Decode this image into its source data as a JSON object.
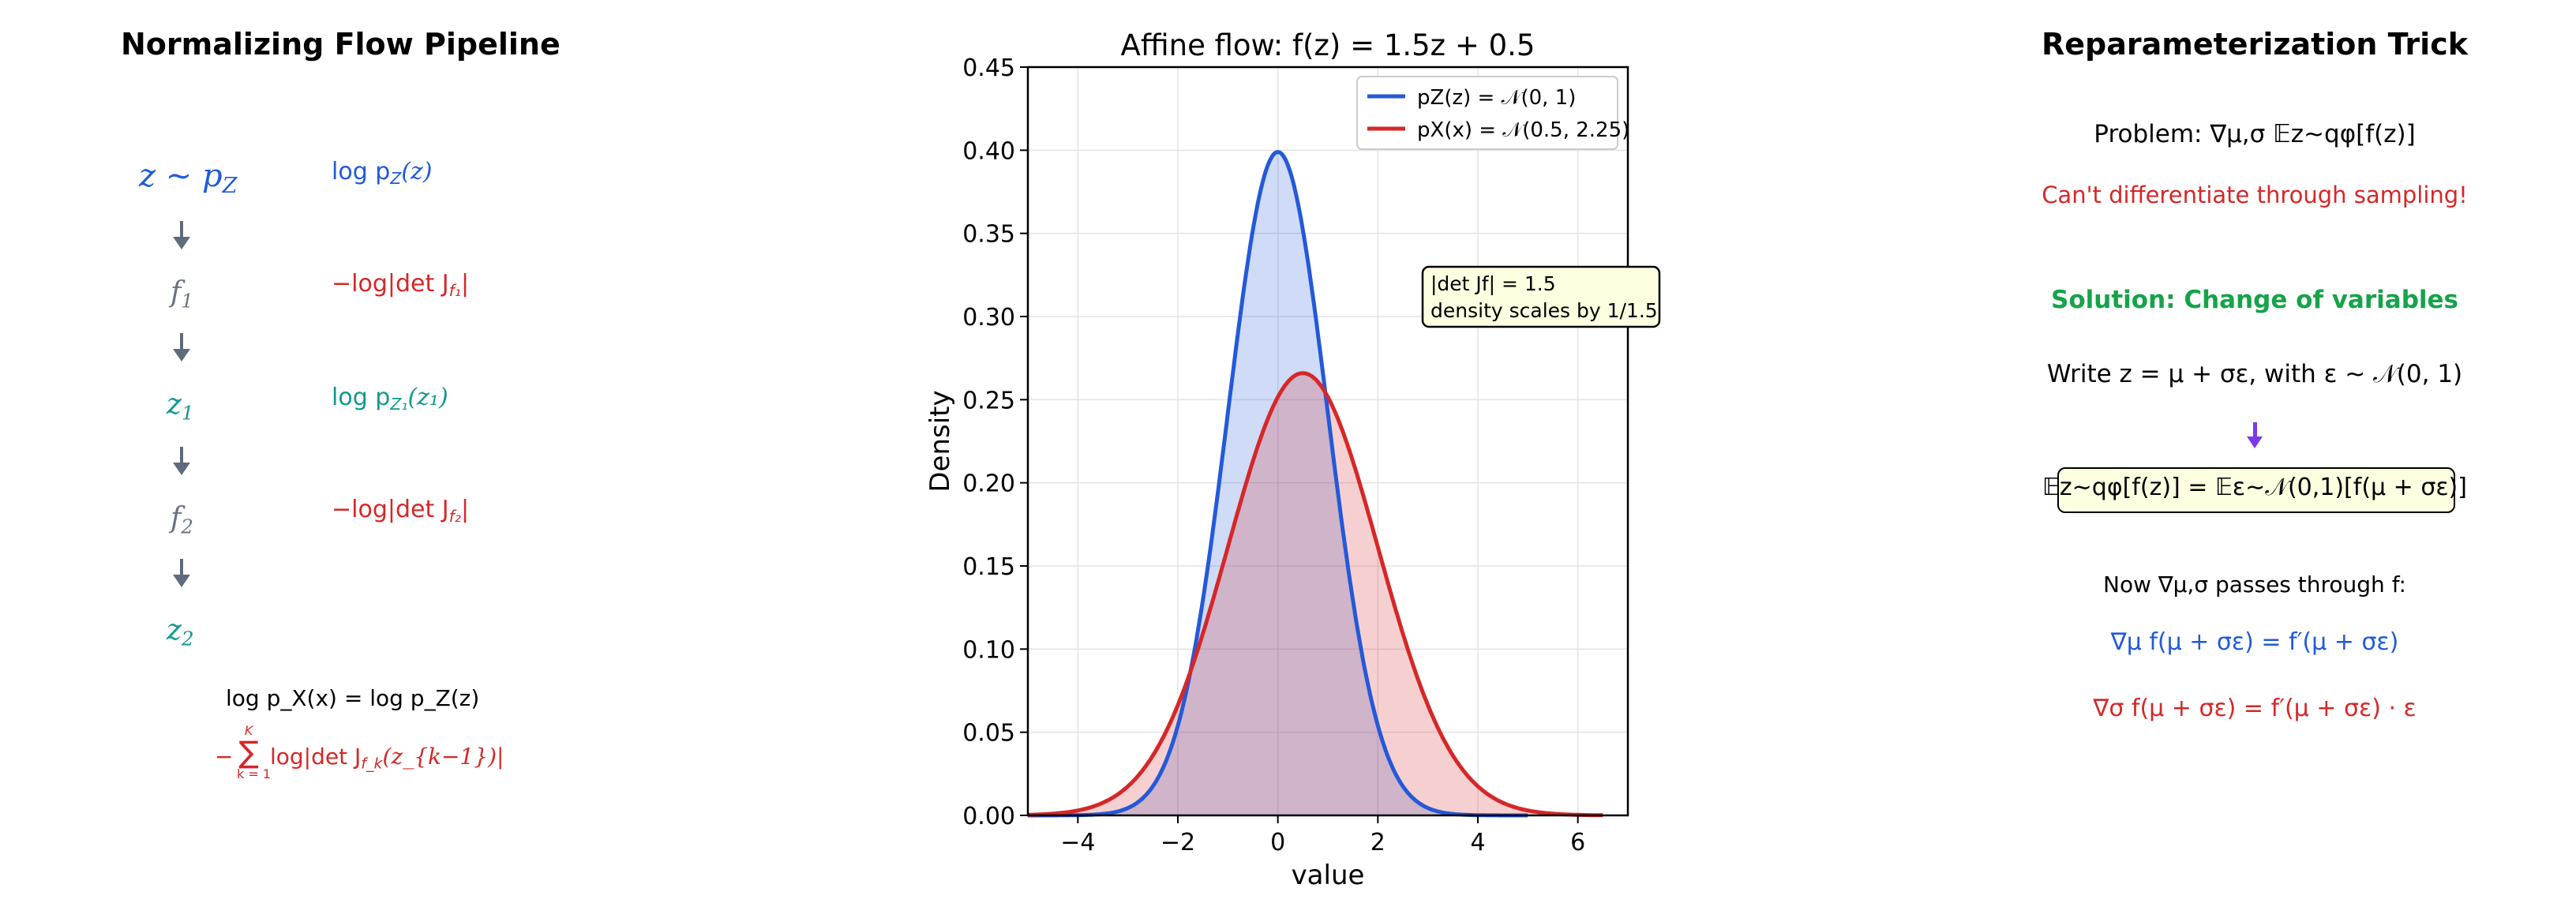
{
  "pipeline": {
    "title": "Normalizing Flow Pipeline",
    "nodes": [
      {
        "main": "z ∼ p",
        "sub": "Z"
      },
      {
        "main": "f",
        "sub": "1"
      },
      {
        "main": "z",
        "sub": "1"
      },
      {
        "main": "f",
        "sub": "2"
      },
      {
        "main": "z",
        "sub": "2"
      }
    ],
    "annotations": {
      "logpz": "log p",
      "logpz_sub": "Z",
      "logpz_arg": "(z)",
      "det1_prefix": "−log|det J",
      "det1_sub": "f₁",
      "det1_suffix": "|",
      "logpz1": "log p",
      "logpz1_sub": "Z₁",
      "logpz1_arg": "(z₁)",
      "det2_prefix": "−log|det J",
      "det2_sub": "f₂",
      "det2_suffix": "|"
    },
    "formula_line1": "log p_X(x) = log p_Z(z)",
    "formula_line2_minus": "−",
    "formula_sum": "∑",
    "formula_sum_top": "K",
    "formula_sum_bottom": "k = 1",
    "formula_line2_body": "log|det J",
    "formula_line2_sub": "f_k",
    "formula_line2_arg": "(z_{k−1})|",
    "colors": {
      "blue": "#1f5bd8",
      "red": "#d62728",
      "teal": "#11998e",
      "gray": "#6b7280"
    }
  },
  "chart_data": {
    "type": "line",
    "title": "Affine flow: f(z) = 1.5z + 0.5",
    "xlabel": "value",
    "ylabel": "Density",
    "xlim": [
      -5,
      7
    ],
    "ylim": [
      0,
      0.45
    ],
    "xticks": [
      -4,
      -2,
      0,
      2,
      4,
      6
    ],
    "xtick_labels": [
      "−4",
      "−2",
      "0",
      "2",
      "4",
      "6"
    ],
    "yticks": [
      0.0,
      0.05,
      0.1,
      0.15,
      0.2,
      0.25,
      0.3,
      0.35,
      0.4,
      0.45
    ],
    "ytick_labels": [
      "0.00",
      "0.05",
      "0.10",
      "0.15",
      "0.20",
      "0.25",
      "0.30",
      "0.35",
      "0.40",
      "0.45"
    ],
    "grid": true,
    "legend_position": "top-right",
    "series": [
      {
        "name": "p_Z(z) = N(0, 1)",
        "legend": "pZ(z) = 𝒩(0, 1)",
        "mean": 0.0,
        "std": 1.0,
        "range": [
          -5,
          5
        ],
        "color": "#2459d9",
        "fill": "#cfdcf7"
      },
      {
        "name": "p_X(x) = N(0.5, 2.25)",
        "legend": "pX(x) = 𝒩(0.5, 2.25)",
        "mean": 0.5,
        "std": 1.5,
        "range": [
          -5,
          6.5
        ],
        "color": "#d62728",
        "fill": "#f4c6c6"
      }
    ],
    "annotation": {
      "line1": "|det Jf| = 1.5",
      "line2": "density scales by 1/1.5"
    }
  },
  "reparam": {
    "title": "Reparameterization Trick",
    "problem": "Problem: ∇μ,σ 𝔼z∼qφ[f(z)]",
    "cant": "Can't differentiate through sampling!",
    "solution": "Solution: Change of variables",
    "write": "Write z = μ + σε, with ε ∼ 𝒩(0, 1)",
    "boxed": "𝔼z∼qφ[f(z)] = 𝔼ε∼𝒩(0,1)[f(μ + σε)]",
    "now": "Now ∇μ,σ passes through f:",
    "grad_mu": "∇μ f(μ + σε) = f′(μ + σε)",
    "grad_sigma": "∇σ f(μ + σε) = f′(μ + σε) · ε",
    "colors": {
      "red": "#d62728",
      "green": "#16a34a",
      "blue": "#1f5bd8",
      "purple": "#7c3aed"
    }
  }
}
